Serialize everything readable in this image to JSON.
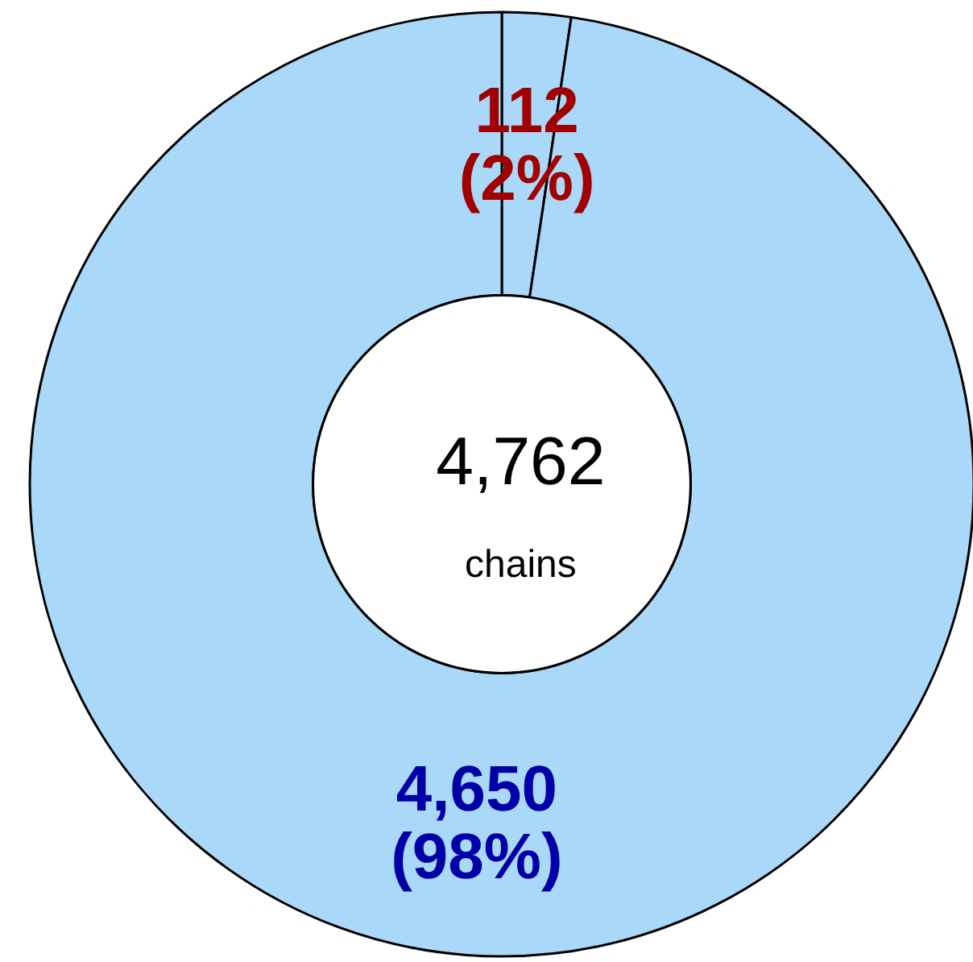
{
  "chart_data": {
    "type": "donut",
    "categories": [
      null,
      null
    ],
    "values": [
      112,
      4650
    ],
    "colors": [
      "#aad8f8",
      "#aad8f8"
    ],
    "value_labels": [
      "112\n(2%)",
      "4,650\n(98%)"
    ],
    "annotations": [
      "4,762",
      "chains"
    ]
  }
}
